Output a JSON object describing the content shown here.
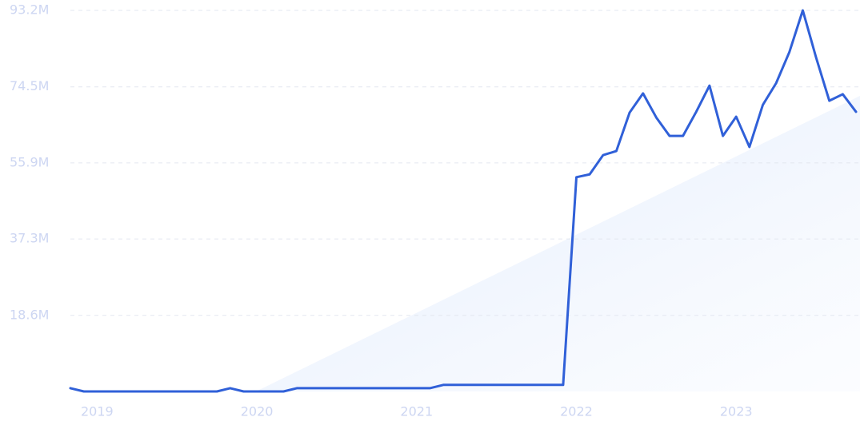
{
  "chart_data": {
    "type": "line",
    "x": [
      2018.833,
      2018.917,
      2019,
      2019.083,
      2019.167,
      2019.25,
      2019.333,
      2019.417,
      2019.5,
      2019.583,
      2019.667,
      2019.75,
      2019.833,
      2019.917,
      2020,
      2020.083,
      2020.167,
      2020.25,
      2020.333,
      2020.417,
      2020.5,
      2020.583,
      2020.667,
      2020.75,
      2020.833,
      2020.917,
      2021,
      2021.083,
      2021.167,
      2021.25,
      2021.333,
      2021.417,
      2021.5,
      2021.583,
      2021.667,
      2021.75,
      2021.833,
      2021.917,
      2022,
      2022.083,
      2022.167,
      2022.25,
      2022.333,
      2022.417,
      2022.5,
      2022.583,
      2022.667,
      2022.75,
      2022.833,
      2022.917,
      2023,
      2023.083,
      2023.167,
      2023.25,
      2023.333,
      2023.417,
      2023.5,
      2023.583,
      2023.667,
      2023.75
    ],
    "series": [
      {
        "color": "#3060d8",
        "values": [
          0.8,
          0,
          0,
          0,
          0,
          0,
          0,
          0,
          0,
          0,
          0,
          0,
          0.8,
          0,
          0,
          0,
          0,
          0.8,
          0.8,
          0.8,
          0.8,
          0.8,
          0.8,
          0.8,
          0.8,
          0.8,
          0.8,
          0.8,
          1.6,
          1.6,
          1.6,
          1.6,
          1.6,
          1.6,
          1.6,
          1.6,
          1.6,
          1.6,
          52.4,
          53.1,
          57.8,
          58.8,
          68.2,
          72.9,
          67.0,
          62.5,
          62.5,
          68.4,
          74.8,
          62.5,
          67.2,
          59.8,
          70.1,
          75.4,
          83.0,
          93.2,
          81.7,
          71.1,
          72.7,
          68.4
        ]
      }
    ],
    "xlim": [
      2018.833,
      2023.75
    ],
    "xticks": [
      2019,
      2020,
      2021,
      2022,
      2023
    ],
    "ylim": [
      0,
      93.2
    ],
    "yticks": [
      {
        "value": 18.6,
        "label": "18.6M"
      },
      {
        "value": 37.3,
        "label": "37.3M"
      },
      {
        "value": 55.9,
        "label": "55.9M"
      },
      {
        "value": 74.5,
        "label": "74.5M"
      },
      {
        "value": 93.2,
        "label": "93.2M"
      }
    ],
    "grid": true
  }
}
